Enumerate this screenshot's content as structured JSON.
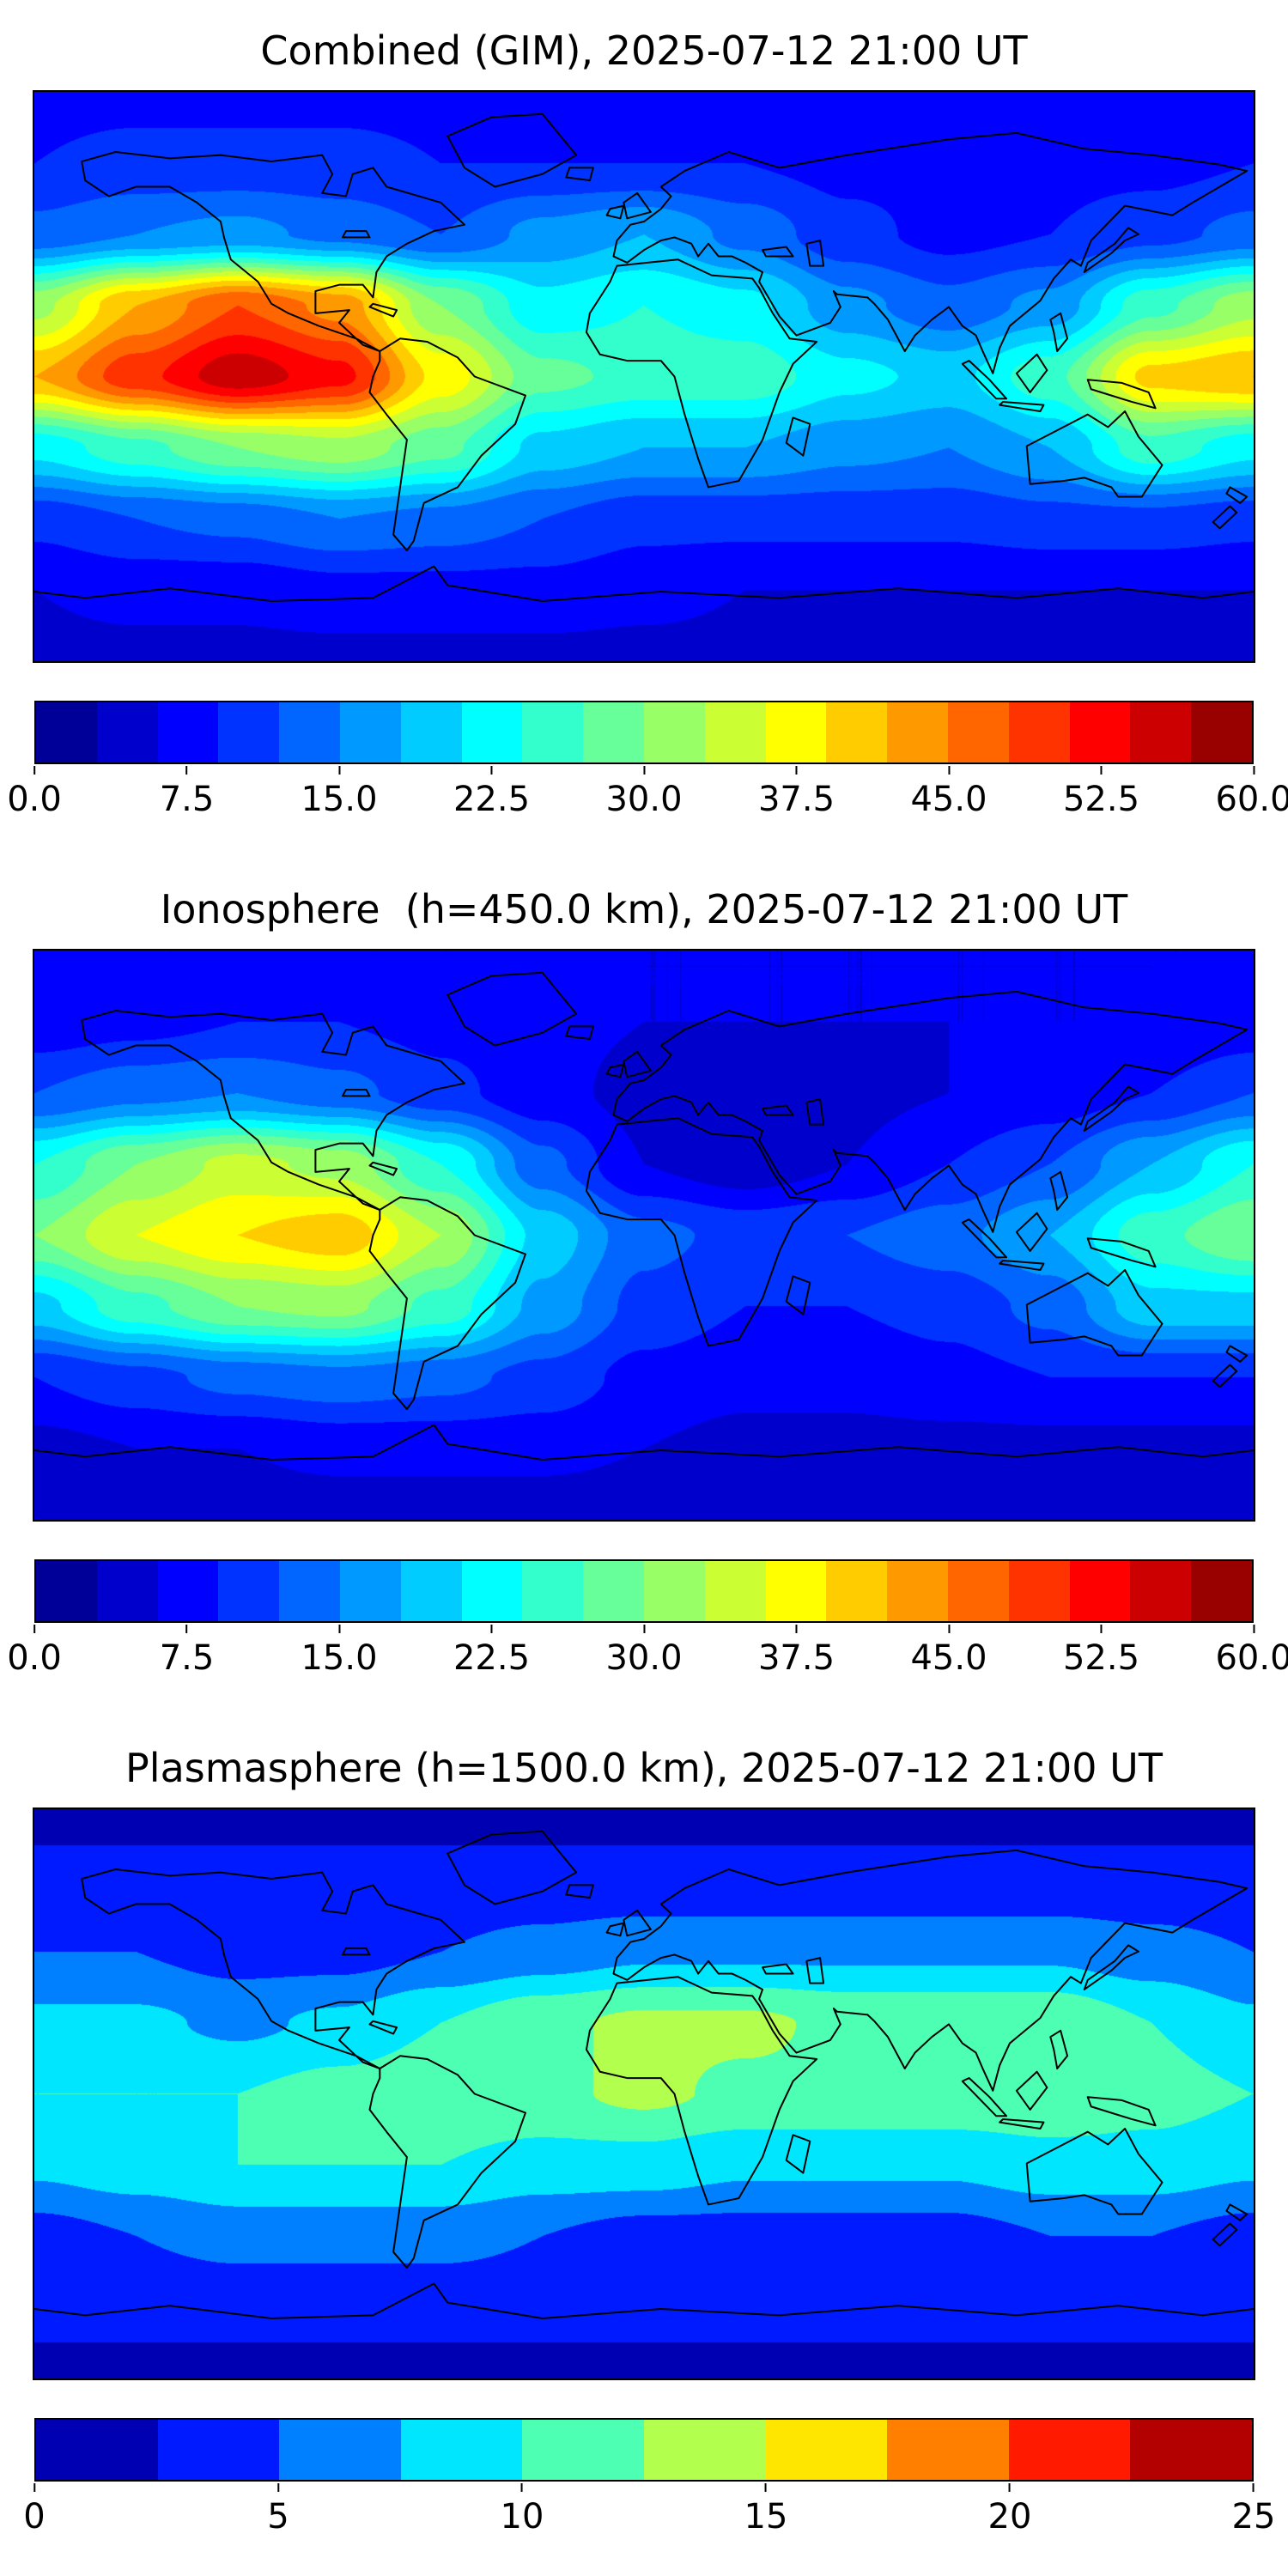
{
  "figure": {
    "background": "#ffffff",
    "frame_color": "#000000",
    "coastline_color": "#000000",
    "colormap": "jet"
  },
  "chart_data": [
    {
      "type": "heatmap",
      "title": "Combined (GIM), 2025-07-12 21:00 UT",
      "projection": "equirectangular",
      "lon": [
        -180,
        -150,
        -120,
        -90,
        -60,
        -30,
        0,
        30,
        60,
        90,
        120,
        150,
        180
      ],
      "lat": [
        90,
        67.5,
        45,
        22.5,
        0,
        -22.5,
        -45,
        -67.5,
        -90
      ],
      "values": [
        [
          8,
          8,
          8,
          8,
          8,
          8,
          8,
          8,
          8,
          8,
          8,
          8,
          8
        ],
        [
          9,
          10,
          10,
          10,
          9,
          9,
          9,
          9,
          8,
          8,
          8,
          8,
          9
        ],
        [
          13,
          15,
          16,
          14,
          12,
          16,
          18,
          14,
          10,
          8,
          9,
          11,
          13
        ],
        [
          32,
          42,
          48,
          44,
          30,
          22,
          24,
          22,
          16,
          13,
          16,
          26,
          32
        ],
        [
          42,
          50,
          56,
          52,
          38,
          28,
          26,
          26,
          22,
          20,
          26,
          40,
          42
        ],
        [
          22,
          26,
          30,
          32,
          28,
          20,
          18,
          18,
          16,
          15,
          18,
          26,
          22
        ],
        [
          10,
          12,
          13,
          15,
          14,
          12,
          10,
          10,
          10,
          10,
          11,
          11,
          10
        ],
        [
          6,
          7,
          7,
          8,
          8,
          8,
          7,
          6,
          6,
          6,
          6,
          6,
          6
        ],
        [
          5,
          5,
          5,
          5,
          5,
          5,
          5,
          5,
          5,
          5,
          5,
          5,
          5
        ]
      ],
      "scale": {
        "min": 0,
        "max": 60,
        "contour_step": 3
      },
      "colorbar": {
        "position": "bottom",
        "ticks": [
          "0.0",
          "7.5",
          "15.0",
          "22.5",
          "30.0",
          "37.5",
          "45.0",
          "52.5",
          "60.0"
        ],
        "colors": [
          "#000099",
          "#0000cc",
          "#0000ff",
          "#0033ff",
          "#0066ff",
          "#0099ff",
          "#00ccff",
          "#00ffff",
          "#33ffcc",
          "#66ff99",
          "#99ff66",
          "#ccff33",
          "#ffff00",
          "#ffcc00",
          "#ff9900",
          "#ff6600",
          "#ff3300",
          "#ff0000",
          "#cc0000",
          "#990000"
        ]
      }
    },
    {
      "type": "heatmap",
      "title": "Ionosphere  (h=450.0 km), 2025-07-12 21:00 UT",
      "projection": "equirectangular",
      "lon": [
        -180,
        -150,
        -120,
        -90,
        -60,
        -30,
        0,
        30,
        60,
        90,
        120,
        150,
        180
      ],
      "lat": [
        90,
        67.5,
        45,
        22.5,
        0,
        -22.5,
        -45,
        -67.5,
        -90
      ],
      "values": [
        [
          6,
          6,
          6,
          6,
          6,
          6,
          6,
          6,
          6,
          6,
          6,
          6,
          6
        ],
        [
          7,
          8,
          9,
          9,
          8,
          7,
          6,
          6,
          6,
          6,
          6,
          6,
          7
        ],
        [
          12,
          14,
          15,
          13,
          10,
          7,
          5,
          4,
          5,
          6,
          7,
          9,
          12
        ],
        [
          24,
          30,
          34,
          32,
          24,
          13,
          6,
          4,
          6,
          9,
          12,
          18,
          24
        ],
        [
          30,
          36,
          39,
          41,
          33,
          20,
          13,
          11,
          12,
          14,
          18,
          26,
          30
        ],
        [
          20,
          26,
          30,
          31,
          26,
          17,
          11,
          9,
          9,
          10,
          13,
          20,
          20
        ],
        [
          9,
          11,
          13,
          14,
          13,
          11,
          8,
          7,
          7,
          8,
          9,
          9,
          9
        ],
        [
          5,
          6,
          6,
          7,
          7,
          7,
          6,
          5,
          5,
          5,
          5,
          5,
          5
        ],
        [
          4,
          4,
          4,
          4,
          4,
          4,
          4,
          4,
          4,
          4,
          4,
          4,
          4
        ]
      ],
      "scale": {
        "min": 0,
        "max": 60,
        "contour_step": 3
      },
      "colorbar": {
        "position": "bottom",
        "ticks": [
          "0.0",
          "7.5",
          "15.0",
          "22.5",
          "30.0",
          "37.5",
          "45.0",
          "52.5",
          "60.0"
        ],
        "colors": [
          "#000099",
          "#0000cc",
          "#0000ff",
          "#0033ff",
          "#0066ff",
          "#0099ff",
          "#00ccff",
          "#00ffff",
          "#33ffcc",
          "#66ff99",
          "#99ff66",
          "#ccff33",
          "#ffff00",
          "#ffcc00",
          "#ff9900",
          "#ff6600",
          "#ff3300",
          "#ff0000",
          "#cc0000",
          "#990000"
        ]
      }
    },
    {
      "type": "heatmap",
      "title": "Plasmasphere (h=1500.0 km), 2025-07-12 21:00 UT",
      "projection": "equirectangular",
      "lon": [
        -180,
        -150,
        -120,
        -90,
        -60,
        -30,
        0,
        30,
        60,
        90,
        120,
        150,
        180
      ],
      "lat": [
        90,
        67.5,
        45,
        22.5,
        0,
        -22.5,
        -45,
        -67.5,
        -90
      ],
      "values": [
        [
          2,
          2,
          2,
          2,
          2,
          2,
          2,
          2,
          2,
          2,
          2,
          2,
          2
        ],
        [
          3,
          3,
          3,
          3,
          3,
          3,
          3,
          3,
          3,
          3,
          3,
          3,
          3
        ],
        [
          5,
          5,
          4,
          4,
          5,
          6,
          7,
          7,
          7,
          7,
          7,
          6,
          5
        ],
        [
          8,
          8,
          7,
          8,
          10,
          12,
          13,
          13,
          12,
          12,
          12,
          10,
          8
        ],
        [
          10,
          10,
          10,
          11,
          12,
          12,
          13,
          12,
          12,
          12,
          12,
          11,
          10
        ],
        [
          8,
          9,
          10,
          10,
          10,
          9,
          9,
          8,
          8,
          8,
          9,
          9,
          8
        ],
        [
          4,
          5,
          6,
          6,
          6,
          5,
          4,
          4,
          4,
          4,
          5,
          5,
          4
        ],
        [
          3,
          3,
          3,
          3,
          3,
          3,
          3,
          3,
          3,
          3,
          3,
          3,
          3
        ],
        [
          2,
          2,
          2,
          2,
          2,
          2,
          2,
          2,
          2,
          2,
          2,
          2,
          2
        ]
      ],
      "scale": {
        "min": 0,
        "max": 25,
        "contour_step": 2.5
      },
      "colorbar": {
        "position": "bottom",
        "ticks": [
          "0",
          "5",
          "10",
          "15",
          "20",
          "25"
        ],
        "colors": [
          "#0000b3",
          "#001aff",
          "#0080ff",
          "#00e6ff",
          "#4dffb3",
          "#b3ff4d",
          "#ffe600",
          "#ff8000",
          "#ff1a00",
          "#b30000"
        ]
      }
    }
  ]
}
